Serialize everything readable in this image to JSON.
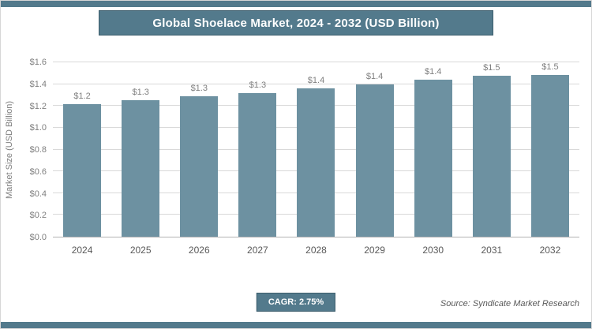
{
  "page": {
    "title": "Global Shoelace Market, 2024 - 2032 (USD Billion)",
    "cagr_label": "CAGR: 2.75%",
    "source": "Source: Syndicate Market Research"
  },
  "colors": {
    "dark": "#537a8c",
    "bar": "#6d91a1",
    "grid": "#d9d9d9"
  },
  "chart_data": {
    "type": "bar",
    "title": "Global Shoelace Market, 2024 - 2032 (USD Billion)",
    "xlabel": "",
    "ylabel": "Market Size (USD Billion)",
    "categories": [
      "2024",
      "2025",
      "2026",
      "2027",
      "2028",
      "2029",
      "2030",
      "2031",
      "2032"
    ],
    "values": [
      1.22,
      1.25,
      1.29,
      1.32,
      1.36,
      1.4,
      1.44,
      1.48,
      1.52
    ],
    "bar_labels": [
      "$1.2",
      "$1.3",
      "$1.3",
      "$1.3",
      "$1.4",
      "$1.4",
      "$1.4",
      "$1.5",
      "$1.5"
    ],
    "yticks": [
      "$0.0",
      "$0.2",
      "$0.4",
      "$0.6",
      "$0.8",
      "$1.0",
      "$1.2",
      "$1.4",
      "$1.6"
    ],
    "ylim": [
      0,
      1.6
    ],
    "grid": true,
    "legend": false,
    "cagr": "2.75%"
  }
}
